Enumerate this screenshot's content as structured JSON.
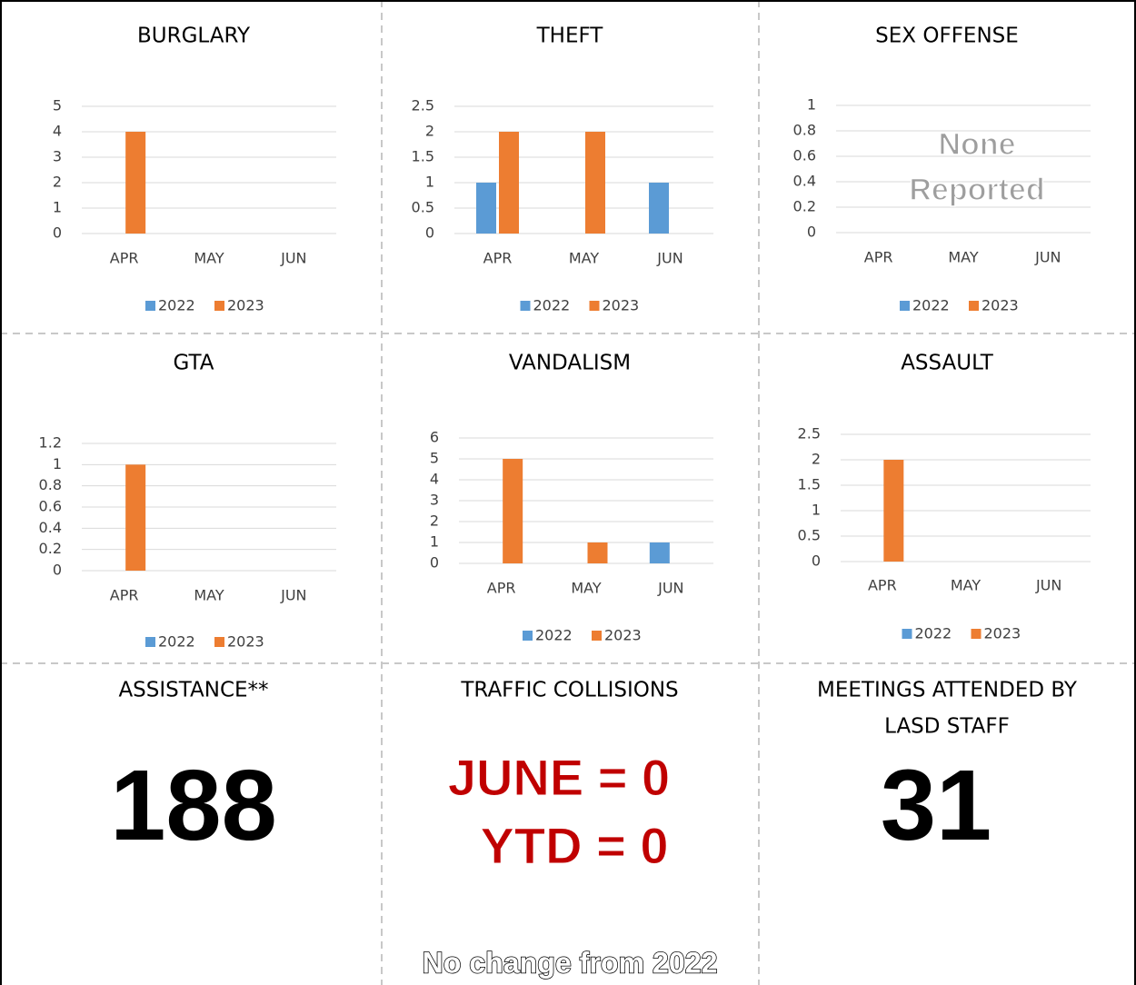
{
  "chart_data": [
    {
      "type": "bar",
      "title": "BURGLARY",
      "categories": [
        "APR",
        "MAY",
        "JUN"
      ],
      "series": [
        {
          "name": "2022",
          "color": "#5b9bd5",
          "values": [
            0,
            0,
            0
          ]
        },
        {
          "name": "2023",
          "color": "#ed7d31",
          "values": [
            4,
            0,
            0
          ]
        }
      ],
      "ylim": [
        0,
        5
      ],
      "yticks": [
        0,
        1,
        2,
        3,
        4,
        5
      ],
      "grid": true,
      "legend": "bottom"
    },
    {
      "type": "bar",
      "title": "THEFT",
      "categories": [
        "APR",
        "MAY",
        "JUN"
      ],
      "series": [
        {
          "name": "2022",
          "color": "#5b9bd5",
          "values": [
            1,
            0,
            1
          ]
        },
        {
          "name": "2023",
          "color": "#ed7d31",
          "values": [
            2,
            2,
            0
          ]
        }
      ],
      "ylim": [
        0,
        2.5
      ],
      "yticks": [
        0,
        0.5,
        1,
        1.5,
        2,
        2.5
      ],
      "grid": true,
      "legend": "bottom"
    },
    {
      "type": "bar",
      "title": "SEX OFFENSE",
      "categories": [
        "APR",
        "MAY",
        "JUN"
      ],
      "series": [
        {
          "name": "2022",
          "color": "#5b9bd5",
          "values": [
            0,
            0,
            0
          ]
        },
        {
          "name": "2023",
          "color": "#ed7d31",
          "values": [
            0,
            0,
            0
          ]
        }
      ],
      "ylim": [
        0,
        1
      ],
      "yticks": [
        0,
        0.2,
        0.4,
        0.6,
        0.8,
        1
      ],
      "grid": true,
      "legend": "bottom",
      "annotation": [
        "None",
        "Reported"
      ]
    },
    {
      "type": "bar",
      "title": "GTA",
      "categories": [
        "APR",
        "MAY",
        "JUN"
      ],
      "series": [
        {
          "name": "2022",
          "color": "#5b9bd5",
          "values": [
            0,
            0,
            0
          ]
        },
        {
          "name": "2023",
          "color": "#ed7d31",
          "values": [
            1,
            0,
            0
          ]
        }
      ],
      "ylim": [
        0,
        1.2
      ],
      "yticks": [
        0,
        0.2,
        0.4,
        0.6,
        0.8,
        1,
        1.2
      ],
      "grid": true,
      "legend": "bottom"
    },
    {
      "type": "bar",
      "title": "VANDALISM",
      "categories": [
        "APR",
        "MAY",
        "JUN"
      ],
      "series": [
        {
          "name": "2022",
          "color": "#5b9bd5",
          "values": [
            0,
            0,
            1
          ]
        },
        {
          "name": "2023",
          "color": "#ed7d31",
          "values": [
            5,
            1,
            0
          ]
        }
      ],
      "ylim": [
        0,
        6
      ],
      "yticks": [
        0,
        1,
        2,
        3,
        4,
        5,
        6
      ],
      "grid": true,
      "legend": "bottom"
    },
    {
      "type": "bar",
      "title": "ASSAULT",
      "categories": [
        "APR",
        "MAY",
        "JUN"
      ],
      "series": [
        {
          "name": "2022",
          "color": "#5b9bd5",
          "values": [
            0,
            0,
            0
          ]
        },
        {
          "name": "2023",
          "color": "#ed7d31",
          "values": [
            2,
            0,
            0
          ]
        }
      ],
      "ylim": [
        0,
        2.5
      ],
      "yticks": [
        0,
        0.5,
        1,
        1.5,
        2,
        2.5
      ],
      "grid": true,
      "legend": "bottom"
    }
  ],
  "panels": {
    "assistance": {
      "title": "ASSISTANCE**",
      "value": 188
    },
    "traffic": {
      "title": "TRAFFIC COLLISIONS",
      "lines": [
        "JUNE = 0",
        "YTD = 0"
      ],
      "note": "No change from 2022"
    },
    "meetings": {
      "title": [
        "MEETINGS ATTENDED BY",
        "LASD STAFF"
      ],
      "value": 31
    }
  }
}
